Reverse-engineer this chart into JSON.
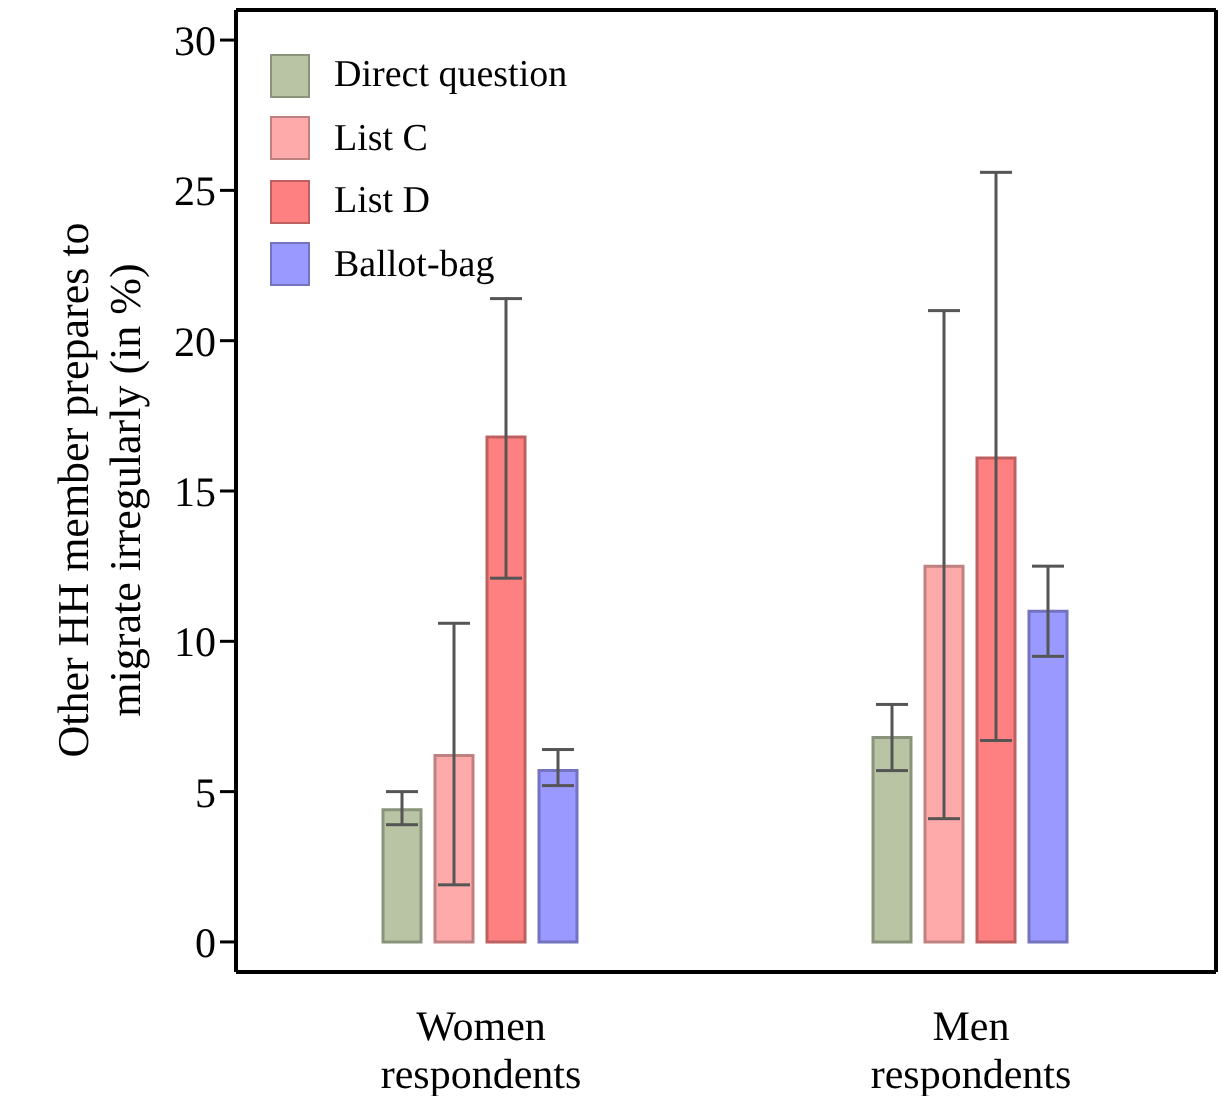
{
  "chart_data": {
    "type": "bar",
    "ylabel": "Other HH member prepares to migrate irregularly (in %)",
    "categories": [
      "Women respondents",
      "Men respondents"
    ],
    "series": [
      {
        "name": "Direct question",
        "color": "#b8c4a4",
        "values": [
          4.4,
          6.8
        ],
        "errors": [
          [
            3.9,
            5.0
          ],
          [
            5.7,
            7.9
          ]
        ]
      },
      {
        "name": "List C",
        "color": "#ffaaaa",
        "values": [
          6.2,
          12.5
        ],
        "errors": [
          [
            1.9,
            10.6
          ],
          [
            4.1,
            21.0
          ]
        ]
      },
      {
        "name": "List D",
        "color": "#ff8080",
        "values": [
          16.8,
          16.1
        ],
        "errors": [
          [
            12.1,
            21.4
          ],
          [
            6.7,
            25.6
          ]
        ]
      },
      {
        "name": "Ballot-bag",
        "color": "#9999ff",
        "values": [
          5.7,
          11.0
        ],
        "errors": [
          [
            5.2,
            6.4
          ],
          [
            9.5,
            12.5
          ]
        ]
      }
    ],
    "ylim": [
      -1,
      31
    ],
    "yticks": [
      0,
      5,
      10,
      15,
      20,
      25,
      30
    ],
    "grid": false,
    "legend": "top left"
  }
}
